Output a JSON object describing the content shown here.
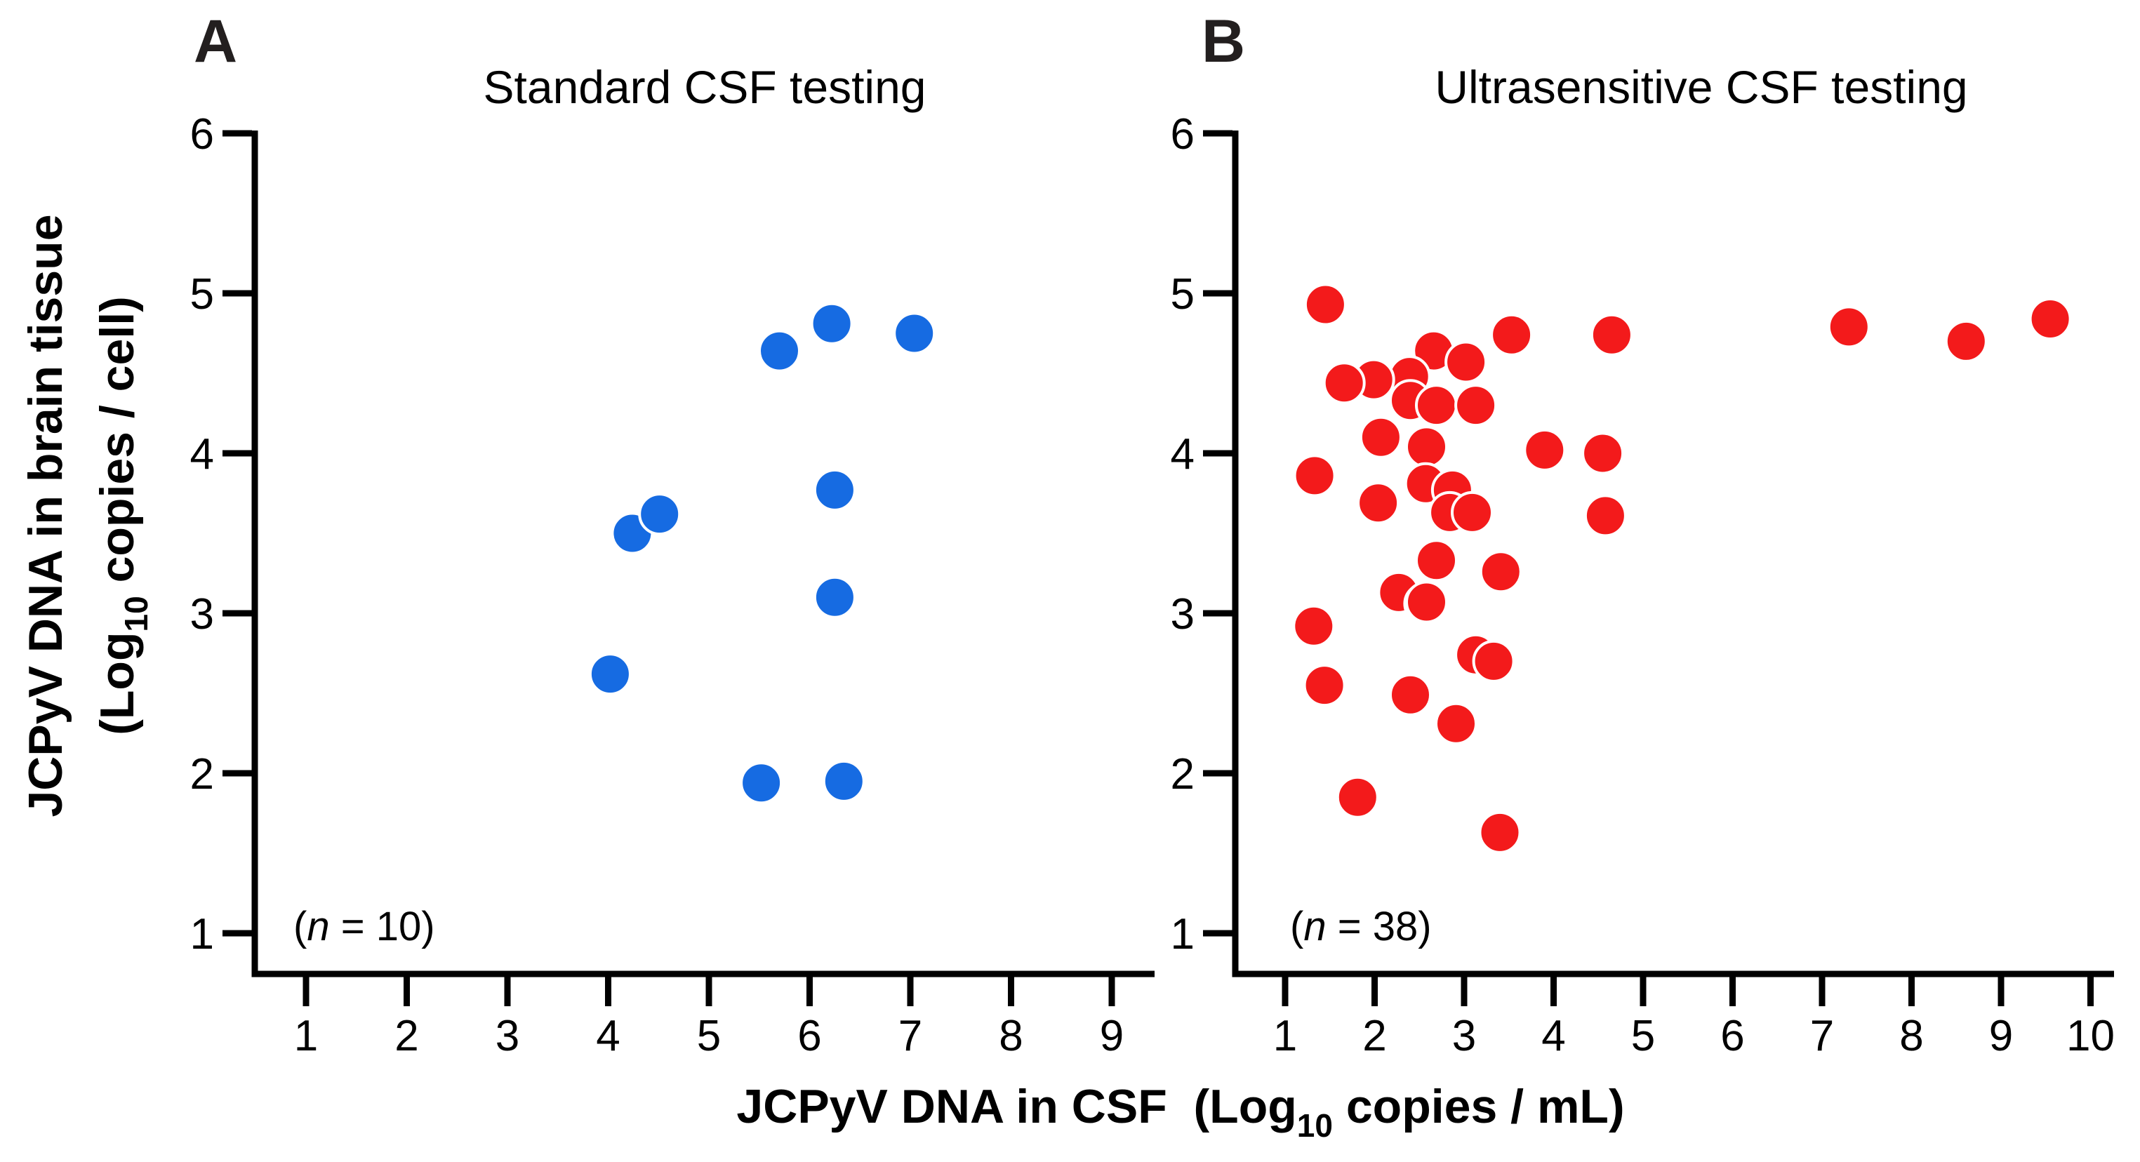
{
  "figure": {
    "panel_a_letter": "A",
    "panel_b_letter": "B"
  },
  "labels": {
    "n_open": "(",
    "n_var": "n",
    "a_n_rest": " = 10)",
    "b_n_rest": " = 38)",
    "ylabel_line1": "JCPyV DNA in brain tissue",
    "ylabel_line2_pre": "(Log",
    "ylabel_sub": "10",
    "ylabel_line2_post": " copies / cell)",
    "xlabel_pre": "JCPyV DNA in CSF  (Log",
    "xlabel_sub": "10",
    "xlabel_post": " copies / mL)"
  },
  "chart_data": [
    {
      "type": "scatter",
      "panel": "A",
      "title": "Standard CSF testing",
      "n_label": "(n = 10)",
      "n": 10,
      "xlabel": "JCPyV DNA in CSF (Log10 copies / mL)",
      "ylabel": "JCPyV DNA in brain tissue (Log10 copies / cell)",
      "xlim": [
        0.49,
        9.43
      ],
      "ylim": [
        0.75,
        6.02
      ],
      "x_ticks": [
        1,
        2,
        3,
        4,
        5,
        6,
        7,
        8,
        9
      ],
      "y_ticks": [
        6,
        5,
        4,
        3,
        2,
        1
      ],
      "grid": false,
      "legend_position": "none",
      "series": [
        {
          "name": "Standard CSF testing",
          "color": "#166be2",
          "points": [
            [
              5.7,
              4.64
            ],
            [
              6.22,
              4.81
            ],
            [
              7.04,
              4.75
            ],
            [
              4.24,
              3.5
            ],
            [
              4.51,
              3.62
            ],
            [
              6.25,
              3.77
            ],
            [
              6.25,
              3.1
            ],
            [
              4.02,
              2.62
            ],
            [
              5.52,
              1.94
            ],
            [
              6.34,
              1.95
            ]
          ]
        }
      ]
    },
    {
      "type": "scatter",
      "panel": "B",
      "title": "Ultrasensitive CSF testing",
      "n_label": "(n = 38)",
      "n": 38,
      "xlabel": "JCPyV DNA in CSF (Log10 copies / mL)",
      "ylabel": "JCPyV DNA in brain tissue (Log10 copies / cell)",
      "xlim": [
        0.44,
        10.26
      ],
      "ylim": [
        0.75,
        6.02
      ],
      "x_ticks": [
        1,
        2,
        3,
        4,
        5,
        6,
        7,
        8,
        9,
        10
      ],
      "y_ticks": [
        6,
        5,
        4,
        3,
        2,
        1
      ],
      "grid": false,
      "legend_position": "none",
      "series": [
        {
          "name": "Ultrasensitive CSF testing",
          "color": "#f31a1b",
          "points": [
            [
              1.45,
              4.93
            ],
            [
              9.55,
              4.84
            ],
            [
              7.3,
              4.79
            ],
            [
              4.65,
              4.74
            ],
            [
              3.53,
              4.74
            ],
            [
              8.61,
              4.7
            ],
            [
              2.66,
              4.64
            ],
            [
              3.02,
              4.57
            ],
            [
              2.39,
              4.48
            ],
            [
              1.99,
              4.46
            ],
            [
              1.66,
              4.44
            ],
            [
              2.4,
              4.33
            ],
            [
              2.69,
              4.3
            ],
            [
              3.13,
              4.3
            ],
            [
              2.07,
              4.1
            ],
            [
              2.58,
              4.04
            ],
            [
              3.9,
              4.02
            ],
            [
              4.55,
              4.0
            ],
            [
              1.33,
              3.86
            ],
            [
              2.57,
              3.81
            ],
            [
              2.87,
              3.77
            ],
            [
              2.04,
              3.69
            ],
            [
              2.84,
              3.63
            ],
            [
              3.09,
              3.63
            ],
            [
              4.58,
              3.61
            ],
            [
              2.69,
              3.33
            ],
            [
              3.41,
              3.26
            ],
            [
              2.27,
              3.13
            ],
            [
              2.56,
              3.06
            ],
            [
              2.58,
              3.07
            ],
            [
              1.32,
              2.92
            ],
            [
              3.13,
              2.74
            ],
            [
              3.33,
              2.7
            ],
            [
              1.44,
              2.55
            ],
            [
              2.4,
              2.49
            ],
            [
              2.91,
              2.31
            ],
            [
              1.81,
              1.85
            ],
            [
              3.4,
              1.63
            ]
          ]
        }
      ]
    }
  ]
}
